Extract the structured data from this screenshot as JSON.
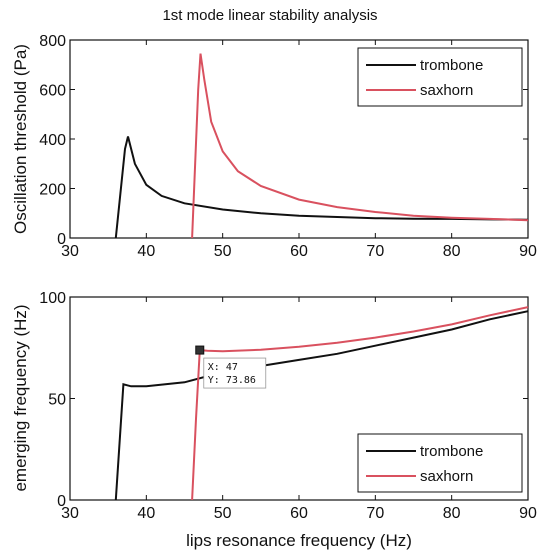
{
  "colors": {
    "trombone": "#111111",
    "saxhorn": "#d9515f",
    "axis": "#111111",
    "tooltip_bg": "#ffffff"
  },
  "chart_data": [
    {
      "type": "line",
      "title": "1st mode linear stability analysis",
      "xlabel": "",
      "ylabel": "Oscillation threshold (Pa)",
      "xlim": [
        30,
        90
      ],
      "ylim": [
        0,
        800
      ],
      "x_ticks": [
        "30",
        "40",
        "50",
        "60",
        "70",
        "80",
        "90"
      ],
      "y_ticks": [
        "0",
        "200",
        "400",
        "600",
        "800"
      ],
      "legend_position": "top-right",
      "series": [
        {
          "name": "trombone",
          "color_key": "trombone",
          "x": [
            36,
            37.2,
            37.6,
            38.5,
            40,
            42,
            45,
            50,
            55,
            60,
            65,
            70,
            75,
            80,
            85,
            90
          ],
          "y": [
            0,
            360,
            410,
            300,
            215,
            170,
            140,
            115,
            100,
            90,
            85,
            80,
            78,
            77,
            75,
            74
          ]
        },
        {
          "name": "saxhorn",
          "color_key": "saxhorn",
          "x": [
            46,
            46.8,
            47.1,
            47.6,
            48.5,
            50,
            52,
            55,
            60,
            65,
            70,
            75,
            80,
            85,
            90
          ],
          "y": [
            0,
            600,
            745,
            640,
            470,
            350,
            270,
            210,
            155,
            125,
            105,
            90,
            82,
            77,
            72
          ]
        }
      ]
    },
    {
      "type": "line",
      "title": "",
      "xlabel": "lips resonance frequency (Hz)",
      "ylabel": "emerging frequency (Hz)",
      "xlim": [
        30,
        90
      ],
      "ylim": [
        0,
        100
      ],
      "x_ticks": [
        "30",
        "40",
        "50",
        "60",
        "70",
        "80",
        "90"
      ],
      "y_ticks": [
        "0",
        "50",
        "100"
      ],
      "legend_position": "bottom-right",
      "series": [
        {
          "name": "trombone",
          "color_key": "trombone",
          "x": [
            36,
            37,
            38,
            40,
            45,
            50,
            55,
            60,
            65,
            70,
            75,
            80,
            85,
            90
          ],
          "y": [
            0,
            57,
            56,
            56,
            58,
            63,
            66,
            69,
            72,
            76,
            80,
            84,
            89,
            93
          ]
        },
        {
          "name": "saxhorn",
          "color_key": "saxhorn",
          "x": [
            46,
            46.5,
            47,
            48,
            50,
            55,
            60,
            65,
            70,
            75,
            80,
            85,
            90
          ],
          "y": [
            0,
            40,
            73.86,
            73.5,
            73.3,
            74,
            75.5,
            77.5,
            80,
            83,
            86.5,
            91,
            95
          ]
        }
      ],
      "annotation": {
        "x": 47,
        "y": 73.86,
        "line1": "X: 47",
        "line2": "Y: 73.86"
      }
    }
  ]
}
